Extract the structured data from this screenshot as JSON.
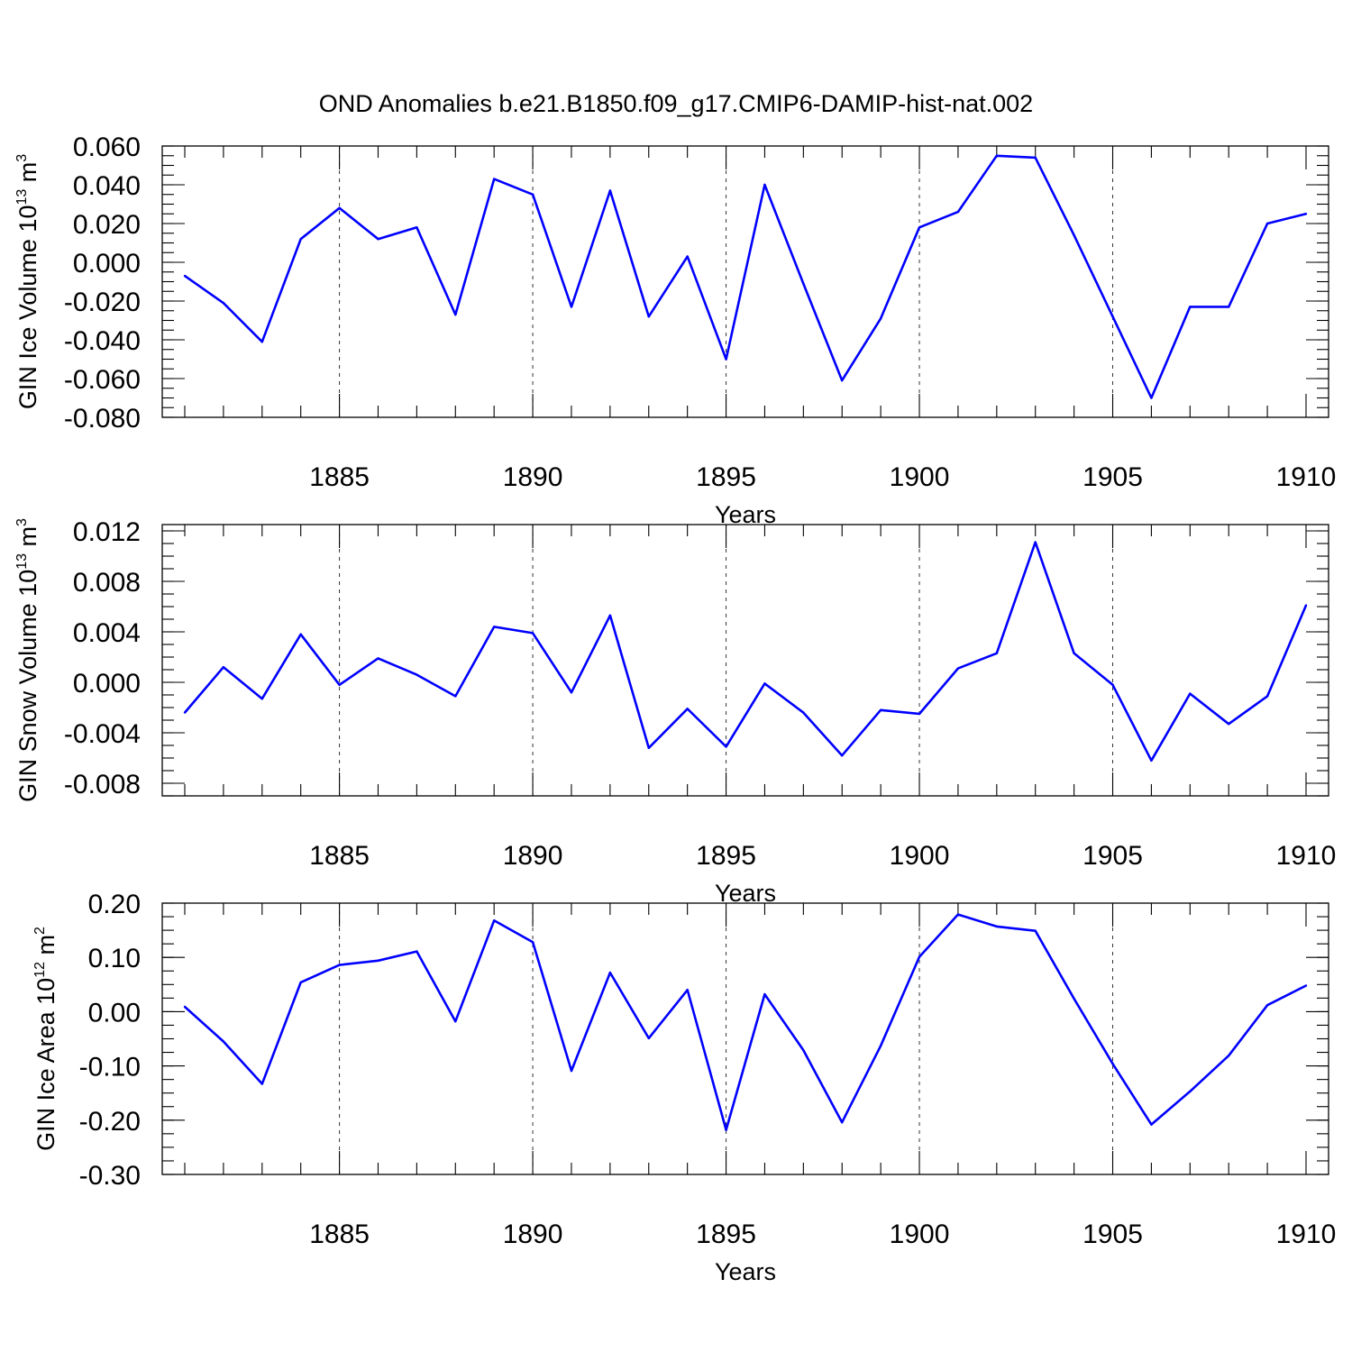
{
  "figure_title": "OND Anomalies b.e21.B1850.f09_g17.CMIP6-DAMIP-hist-nat.002",
  "chart_data": [
    {
      "type": "line",
      "ylabel_main": "GIN Ice Volume 10",
      "ylabel_exp": "13",
      "ylabel_unit": " m",
      "ylabel_unit_exp": "3",
      "xlabel": "Years",
      "xlim": [
        1881,
        1910
      ],
      "ylim": [
        -0.08,
        0.06
      ],
      "yticks": [
        -0.08,
        -0.06,
        -0.04,
        -0.02,
        0.0,
        0.02,
        0.04,
        0.06
      ],
      "ytick_labels": [
        "-0.080",
        "-0.060",
        "-0.040",
        "-0.020",
        "0.000",
        "0.020",
        "0.040",
        "0.060"
      ],
      "yminor_step": 0.005,
      "xticks": [
        1885,
        1890,
        1895,
        1900,
        1905,
        1910
      ],
      "xtick_labels": [
        "1885",
        "1890",
        "1895",
        "1900",
        "1905",
        "1910"
      ],
      "grid_x": [
        1885,
        1890,
        1895,
        1900,
        1905
      ],
      "series": [
        {
          "name": "GIN Ice Volume",
          "color": "#0000ff",
          "x": [
            1881,
            1882,
            1883,
            1884,
            1885,
            1886,
            1887,
            1888,
            1889,
            1890,
            1891,
            1892,
            1893,
            1894,
            1895,
            1896,
            1897,
            1898,
            1899,
            1900,
            1901,
            1902,
            1903,
            1904,
            1905,
            1906,
            1907,
            1908,
            1909,
            1910
          ],
          "values": [
            -0.007,
            -0.021,
            -0.041,
            0.012,
            0.028,
            0.012,
            0.018,
            -0.027,
            0.043,
            0.035,
            -0.023,
            0.037,
            -0.028,
            0.003,
            -0.05,
            0.04,
            -0.011,
            -0.061,
            -0.029,
            0.018,
            0.026,
            0.055,
            0.054,
            0.014,
            -0.028,
            -0.07,
            -0.023,
            -0.023,
            0.02,
            0.025
          ]
        }
      ]
    },
    {
      "type": "line",
      "ylabel_main": "GIN Snow Volume 10",
      "ylabel_exp": "13",
      "ylabel_unit": " m",
      "ylabel_unit_exp": "3",
      "xlabel": "Years",
      "xlim": [
        1881,
        1910
      ],
      "ylim": [
        -0.009,
        0.0125
      ],
      "yticks": [
        -0.008,
        -0.004,
        0.0,
        0.004,
        0.008,
        0.012
      ],
      "ytick_labels": [
        "-0.008",
        "-0.004",
        "0.000",
        "0.004",
        "0.008",
        "0.012"
      ],
      "yminor_step": 0.001,
      "xticks": [
        1885,
        1890,
        1895,
        1900,
        1905,
        1910
      ],
      "xtick_labels": [
        "1885",
        "1890",
        "1895",
        "1900",
        "1905",
        "1910"
      ],
      "grid_x": [
        1885,
        1890,
        1895,
        1900,
        1905
      ],
      "series": [
        {
          "name": "GIN Snow Volume",
          "color": "#0000ff",
          "x": [
            1881,
            1882,
            1883,
            1884,
            1885,
            1886,
            1887,
            1888,
            1889,
            1890,
            1891,
            1892,
            1893,
            1894,
            1895,
            1896,
            1897,
            1898,
            1899,
            1900,
            1901,
            1902,
            1903,
            1904,
            1905,
            1906,
            1907,
            1908,
            1909,
            1910
          ],
          "values": [
            -0.0024,
            0.0012,
            -0.0013,
            0.0038,
            -0.0002,
            0.0019,
            0.0006,
            -0.0011,
            0.0044,
            0.0039,
            -0.0008,
            0.0053,
            -0.0052,
            -0.0021,
            -0.0051,
            -0.0001,
            -0.0024,
            -0.0058,
            -0.0022,
            -0.0025,
            0.0011,
            0.0023,
            0.0111,
            0.0023,
            -0.0002,
            -0.0062,
            -0.0009,
            -0.0033,
            -0.0011,
            0.0061
          ]
        }
      ]
    },
    {
      "type": "line",
      "ylabel_main": "GIN Ice Area 10",
      "ylabel_exp": "12",
      "ylabel_unit": " m",
      "ylabel_unit_exp": "2",
      "xlabel": "Years",
      "xlim": [
        1881,
        1910
      ],
      "ylim": [
        -0.3,
        0.2
      ],
      "yticks": [
        -0.3,
        -0.2,
        -0.1,
        0.0,
        0.1,
        0.2
      ],
      "ytick_labels": [
        "-0.30",
        "-0.20",
        "-0.10",
        "0.00",
        "0.10",
        "0.20"
      ],
      "yminor_step": 0.025,
      "xticks": [
        1885,
        1890,
        1895,
        1900,
        1905,
        1910
      ],
      "xtick_labels": [
        "1885",
        "1890",
        "1895",
        "1900",
        "1905",
        "1910"
      ],
      "grid_x": [
        1885,
        1890,
        1895,
        1900,
        1905
      ],
      "series": [
        {
          "name": "GIN Ice Area",
          "color": "#0000ff",
          "x": [
            1881,
            1882,
            1883,
            1884,
            1885,
            1886,
            1887,
            1888,
            1889,
            1890,
            1891,
            1892,
            1893,
            1894,
            1895,
            1896,
            1897,
            1898,
            1899,
            1900,
            1901,
            1902,
            1903,
            1904,
            1905,
            1906,
            1907,
            1908,
            1909,
            1910
          ],
          "values": [
            0.009,
            -0.055,
            -0.133,
            0.054,
            0.086,
            0.094,
            0.111,
            -0.018,
            0.168,
            0.128,
            -0.109,
            0.072,
            -0.049,
            0.04,
            -0.218,
            0.032,
            -0.071,
            -0.204,
            -0.063,
            0.101,
            0.179,
            0.157,
            0.149,
            0.024,
            -0.096,
            -0.208,
            -0.147,
            -0.081,
            0.012,
            0.048
          ]
        }
      ]
    }
  ]
}
